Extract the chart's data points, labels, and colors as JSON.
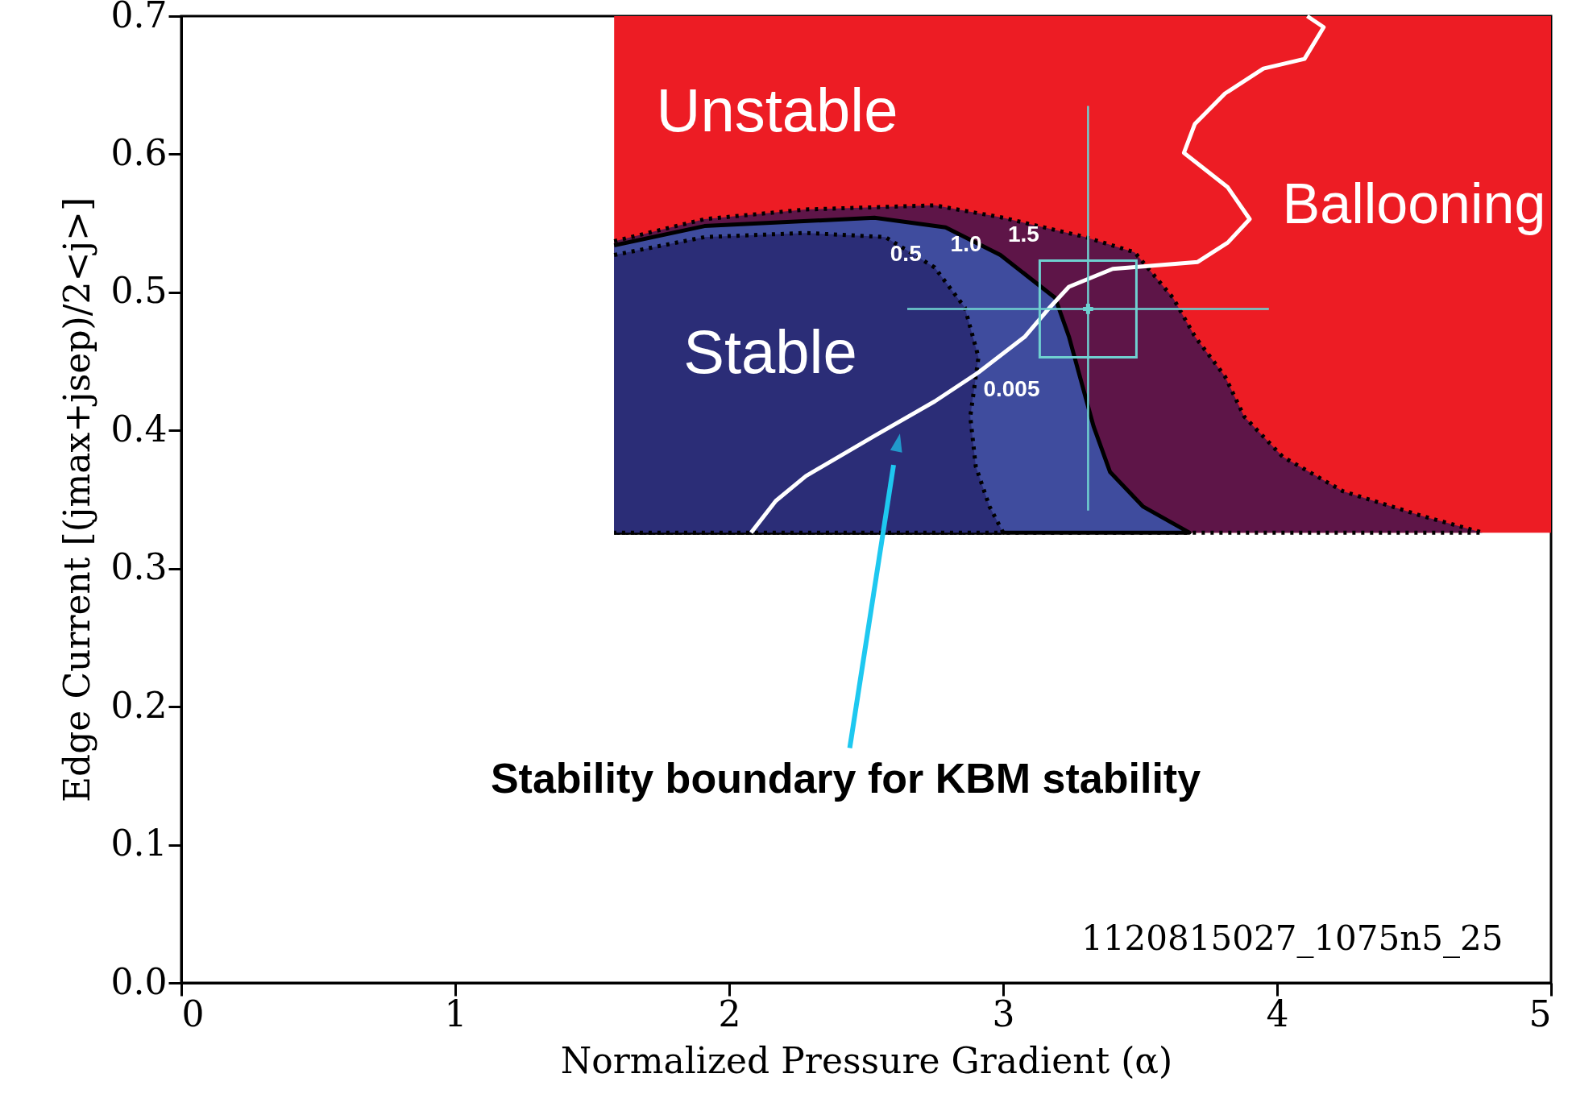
{
  "chart_data": {
    "type": "area",
    "xlabel": "Normalized Pressure Gradient (α)",
    "ylabel": "Edge Current [(jmax+jsep)/2<j>]",
    "xlim": [
      0,
      5
    ],
    "ylim": [
      0,
      0.7
    ],
    "xticks": [
      0,
      1,
      2,
      3,
      4,
      5
    ],
    "yticks": [
      {
        "value": 0,
        "label": "0.0"
      },
      0.1,
      0.2,
      0.3,
      0.4,
      0.5,
      0.6,
      0.7
    ],
    "grid": false,
    "annotations": [
      "Stability boundary for KBM stability",
      "1120815027_1075n5_25",
      "Unstable",
      "Ballooning",
      "Stable"
    ],
    "series": [
      {
        "color": "#ed1c24",
        "x": [
          1.58,
          5,
          5,
          1.58
        ],
        "values": [
          0.326,
          0.326,
          0.7,
          0.7
        ]
      },
      {
        "name": "1.5",
        "line_style": "dotted",
        "color": "#5e1548",
        "x": [
          1.58,
          1.91,
          2.28,
          2.75,
          3.0,
          3.3,
          3.48,
          3.62,
          3.7,
          3.81,
          3.88,
          4.02,
          4.24,
          4.53,
          4.75,
          1.58
        ],
        "values": [
          0.537,
          0.553,
          0.56,
          0.563,
          0.554,
          0.54,
          0.529,
          0.496,
          0.468,
          0.439,
          0.41,
          0.381,
          0.356,
          0.338,
          0.326,
          0.326
        ]
      },
      {
        "name": "1.0",
        "line_style": "solid",
        "color": "#3f4c9e",
        "x": [
          1.58,
          1.91,
          2.53,
          2.79,
          2.99,
          3.19,
          3.24,
          3.28,
          3.33,
          3.39,
          3.51,
          3.68,
          1.58
        ],
        "values": [
          0.534,
          0.548,
          0.554,
          0.547,
          0.527,
          0.496,
          0.468,
          0.439,
          0.403,
          0.37,
          0.345,
          0.326,
          0.326
        ]
      },
      {
        "name": "0.5",
        "line_style": "dotted",
        "color": "#2b2d77",
        "x": [
          1.58,
          1.91,
          2.28,
          2.57,
          2.75,
          2.86,
          2.91,
          2.88,
          2.9,
          2.95,
          3.0,
          1.58
        ],
        "values": [
          0.527,
          0.54,
          0.543,
          0.54,
          0.518,
          0.489,
          0.453,
          0.41,
          0.374,
          0.345,
          0.326,
          0.326
        ]
      },
      {
        "type": "line",
        "name": "0.005",
        "line_style": "solid",
        "color": "#ffffff",
        "x": [
          2.08,
          2.17,
          2.28,
          2.53,
          2.75,
          2.91,
          3.08,
          3.17,
          3.24,
          3.4,
          3.71,
          3.82,
          3.9,
          3.82,
          3.66,
          3.7,
          3.81,
          3.95,
          4.1,
          4.17,
          4.11
        ],
        "values": [
          0.326,
          0.349,
          0.367,
          0.396,
          0.421,
          0.442,
          0.468,
          0.489,
          0.504,
          0.517,
          0.522,
          0.536,
          0.553,
          0.576,
          0.601,
          0.622,
          0.644,
          0.662,
          0.669,
          0.692,
          0.7
        ]
      },
      {
        "type": "scatter",
        "marker": "cross",
        "color": "#6fd0d0",
        "x": [
          3.31
        ],
        "values": [
          0.488
        ],
        "errors": [
          [
            0.342,
            0.635
          ]
        ],
        "xerrors": [
          [
            2.65,
            3.97
          ]
        ]
      }
    ]
  }
}
